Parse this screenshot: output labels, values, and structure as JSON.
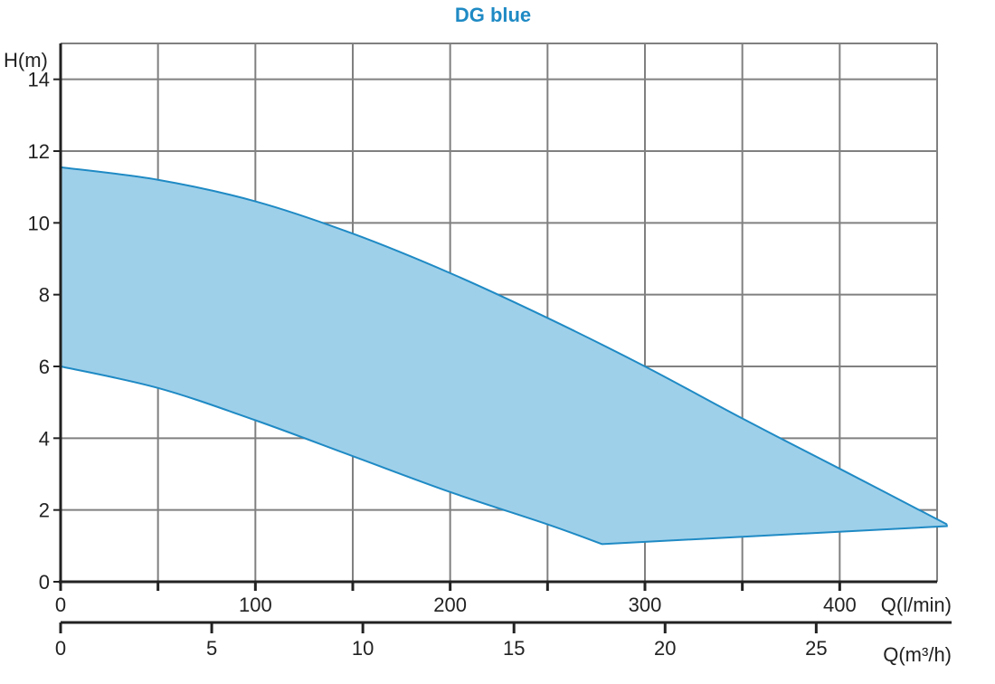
{
  "chart_data": {
    "type": "area",
    "title": "DG blue",
    "ylabel": "H(m)",
    "xlabel": "Q(l/min)",
    "xlabel2": "Q(m³/h)",
    "ylim": [
      0,
      15
    ],
    "xlim": [
      0,
      450
    ],
    "xlim2": [
      0,
      29
    ],
    "y_ticks": [
      0,
      2,
      4,
      6,
      8,
      10,
      12,
      14
    ],
    "x_tick_labels": [
      0,
      100,
      200,
      300,
      400
    ],
    "x_grid": [
      0,
      50,
      100,
      150,
      200,
      250,
      300,
      350,
      400,
      450
    ],
    "x2_ticks": [
      0,
      5,
      10,
      15,
      20,
      25
    ],
    "grid": true,
    "colors": {
      "fill": "#9fd0ea",
      "line": "#1f8ac4",
      "title": "#1f8ac4",
      "grid": "#808080",
      "axis": "#222222"
    },
    "series": [
      {
        "values_upper": [
          [
            0,
            11.55
          ],
          [
            50,
            11.2
          ],
          [
            100,
            10.6
          ],
          [
            150,
            9.7
          ],
          [
            200,
            8.6
          ],
          [
            250,
            7.35
          ],
          [
            300,
            6.0
          ],
          [
            350,
            4.55
          ],
          [
            400,
            3.15
          ],
          [
            455,
            1.6
          ]
        ],
        "values_lower": [
          [
            0,
            6.0
          ],
          [
            50,
            5.4
          ],
          [
            100,
            4.5
          ],
          [
            150,
            3.5
          ],
          [
            200,
            2.5
          ],
          [
            250,
            1.6
          ],
          [
            278,
            1.05
          ],
          [
            455,
            1.55
          ]
        ]
      }
    ]
  }
}
